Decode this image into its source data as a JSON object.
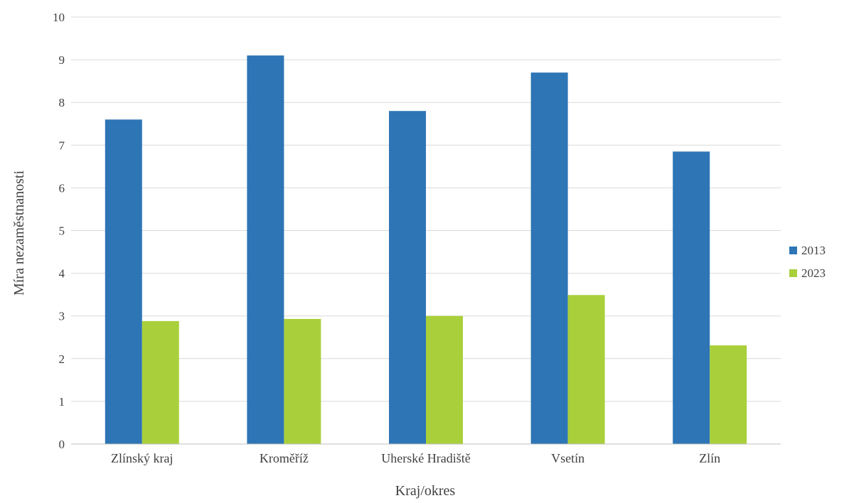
{
  "chart_data": {
    "type": "bar",
    "title": "",
    "xlabel": "Kraj/okres",
    "ylabel": "Míra nezaměstnanosti",
    "categories": [
      "Zlínský kraj",
      "Kroměříž",
      "Uherské Hradiště",
      "Vsetín",
      "Zlín"
    ],
    "series": [
      {
        "name": "2013",
        "color": "#2e75b6",
        "values": [
          7.6,
          9.1,
          7.8,
          8.7,
          6.85
        ]
      },
      {
        "name": "2023",
        "color": "#a9d03b",
        "values": [
          2.88,
          2.93,
          3.0,
          3.49,
          2.31
        ]
      }
    ],
    "ylim": [
      0,
      10
    ],
    "yticks": [
      0,
      1,
      2,
      3,
      4,
      5,
      6,
      7,
      8,
      9,
      10
    ],
    "grid": true,
    "legend_position": "right"
  }
}
